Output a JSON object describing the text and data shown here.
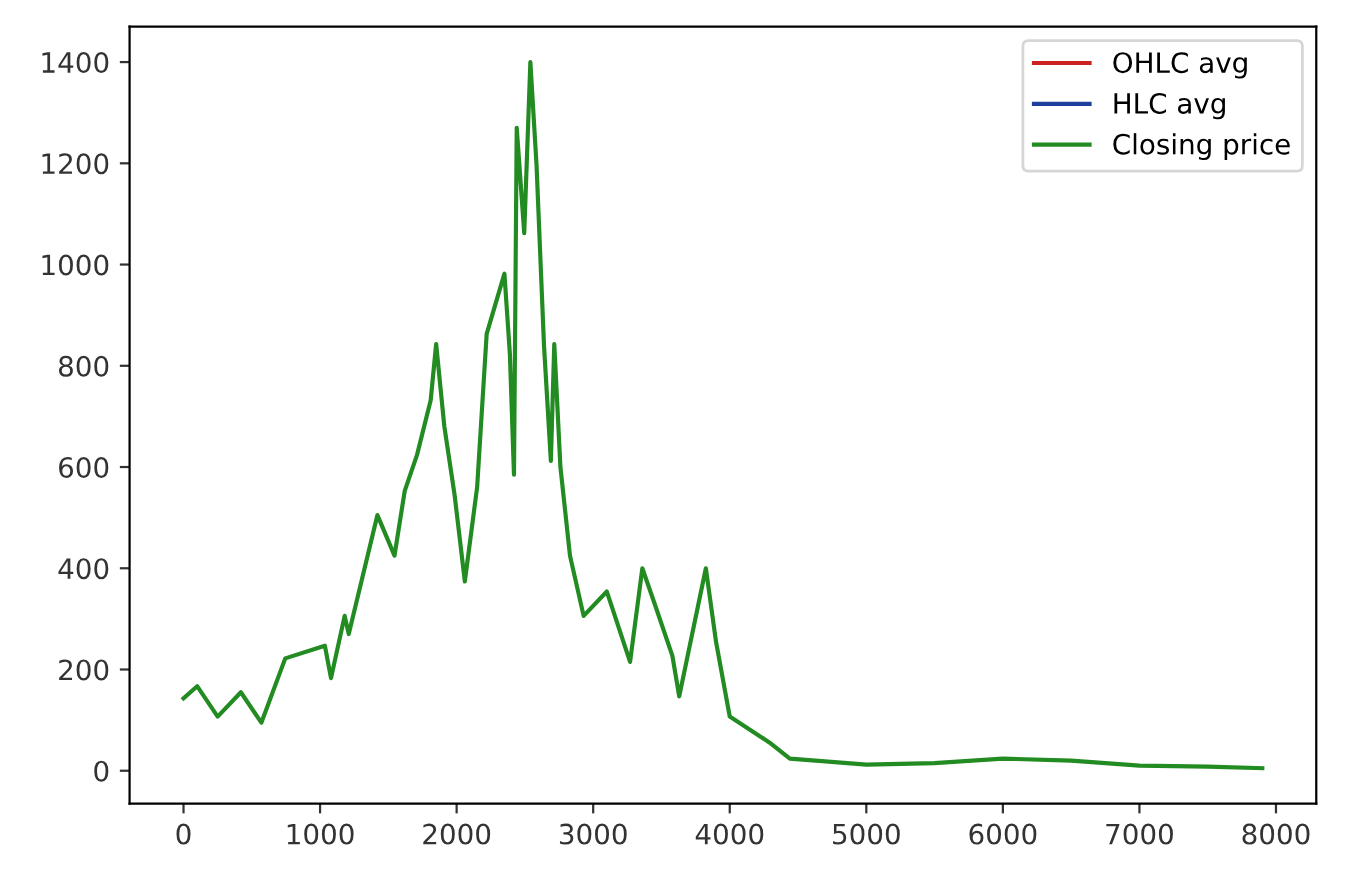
{
  "chart_data": {
    "type": "line",
    "x": [
      0,
      100,
      250,
      420,
      570,
      745,
      1035,
      1080,
      1180,
      1210,
      1420,
      1545,
      1620,
      1710,
      1810,
      1850,
      1910,
      1985,
      2060,
      2150,
      2220,
      2350,
      2390,
      2420,
      2440,
      2495,
      2540,
      2585,
      2640,
      2690,
      2715,
      2760,
      2830,
      2930,
      3100,
      3270,
      3360,
      3460,
      3580,
      3630,
      3825,
      3900,
      4000,
      4290,
      4440,
      5000,
      5500,
      6000,
      6500,
      7000,
      7500,
      7900
    ],
    "series": [
      {
        "name": "OHLC avg",
        "color": "#cc2222",
        "values": [
          null,
          null,
          null,
          null,
          null,
          null,
          null,
          null,
          null,
          null,
          null,
          null,
          null,
          null,
          null,
          null,
          null,
          null,
          null,
          null,
          null,
          null,
          null,
          null,
          null,
          null,
          null,
          null,
          null,
          null,
          null,
          null,
          null,
          null,
          null,
          null,
          null,
          null,
          null,
          null,
          null,
          null,
          null,
          null,
          null,
          null,
          null,
          null,
          null,
          null,
          null,
          null
        ]
      },
      {
        "name": "HLC avg",
        "color": "#1f3f9f",
        "values": [
          null,
          null,
          null,
          null,
          null,
          null,
          null,
          null,
          null,
          null,
          null,
          null,
          null,
          null,
          null,
          null,
          null,
          null,
          null,
          null,
          null,
          null,
          null,
          null,
          null,
          null,
          null,
          null,
          null,
          null,
          null,
          null,
          null,
          null,
          null,
          null,
          null,
          null,
          null,
          null,
          null,
          null,
          null,
          null,
          null,
          null,
          null,
          null,
          null,
          null,
          null,
          null
        ]
      },
      {
        "name": "Closing price",
        "color": "#228b22",
        "values": [
          143,
          167,
          107,
          155,
          95,
          222,
          247,
          183,
          306,
          270,
          505,
          425,
          553,
          624,
          732,
          843,
          680,
          545,
          374,
          560,
          863,
          982,
          823,
          585,
          1270,
          1062,
          1400,
          1197,
          839,
          612,
          843,
          600,
          425,
          306,
          354,
          215,
          400,
          322,
          227,
          147,
          400,
          254,
          107,
          56,
          24,
          12,
          15,
          24,
          20,
          10,
          8,
          5
        ]
      }
    ],
    "xlim": [
      -395,
      8295
    ],
    "xticks": [
      0,
      1000,
      2000,
      3000,
      4000,
      5000,
      6000,
      7000,
      8000
    ],
    "ylim": [
      -65,
      1470
    ],
    "yticks": [
      0,
      200,
      400,
      600,
      800,
      1000,
      1200,
      1400
    ],
    "legend": "top right",
    "grid": false,
    "marker": "none",
    "line_style": "solid"
  }
}
